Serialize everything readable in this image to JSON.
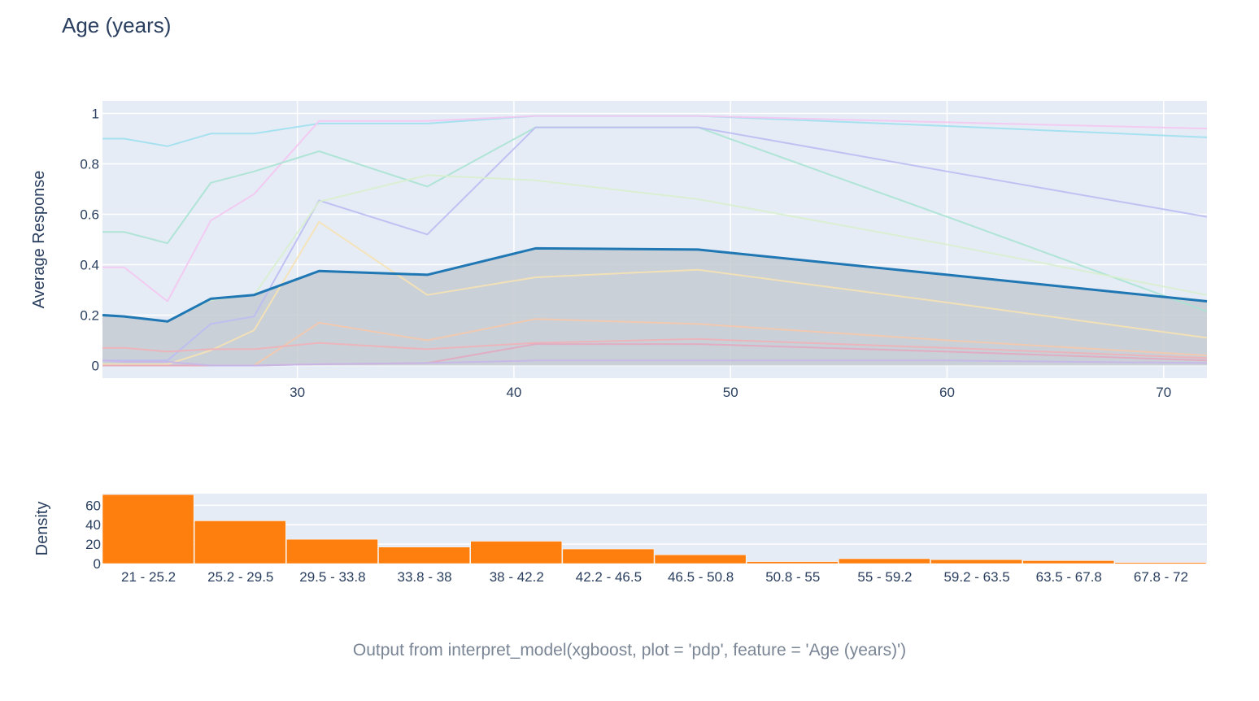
{
  "title": "Age (years)",
  "caption": "Output from interpret_model(xgboost, plot = 'pdp', feature = 'Age (years)')",
  "colors": {
    "plot_bg": "#e5ecf6",
    "grid": "#ffffff",
    "main_line": "#1f77b4",
    "main_fill": "#c5cbd1",
    "bar": "#ff7f0e",
    "axis_text": "#2a3f5f"
  },
  "chart_data": [
    {
      "type": "line",
      "title": "Age (years)",
      "xlabel": "",
      "ylabel": "Average Response",
      "xlim": [
        21,
        72
      ],
      "ylim": [
        -0.05,
        1.05
      ],
      "x_ticks": [
        30,
        40,
        50,
        60,
        70
      ],
      "y_ticks": [
        0,
        0.2,
        0.4,
        0.6,
        0.8,
        1
      ],
      "y_tick_labels": [
        "0",
        "0.2",
        "0.4",
        "0.6",
        "0.8",
        "1"
      ],
      "grid": true,
      "x": [
        21,
        22,
        24,
        26,
        28,
        31,
        36,
        41,
        48.5,
        60,
        72
      ],
      "main_series": {
        "values": [
          0.2,
          0.195,
          0.175,
          0.265,
          0.28,
          0.375,
          0.36,
          0.465,
          0.46,
          0.36,
          0.255
        ],
        "fill_to_zero": true
      },
      "ice_lines": [
        {
          "color": "#9ee0f0",
          "values": [
            0.9,
            0.9,
            0.87,
            0.92,
            0.92,
            0.96,
            0.96,
            0.99,
            0.99,
            0.95,
            0.905
          ]
        },
        {
          "color": "#f4c6f1",
          "values": [
            0.39,
            0.39,
            0.255,
            0.575,
            0.68,
            0.97,
            0.97,
            0.99,
            0.99,
            0.965,
            0.94
          ]
        },
        {
          "color": "#a8e3d3",
          "values": [
            0.53,
            0.53,
            0.485,
            0.725,
            0.77,
            0.85,
            0.71,
            0.945,
            0.945,
            0.59,
            0.215
          ]
        },
        {
          "color": "#bbbdf2",
          "values": [
            0.02,
            0.02,
            0.02,
            0.165,
            0.195,
            0.655,
            0.52,
            0.945,
            0.945,
            0.77,
            0.59
          ]
        },
        {
          "color": "#d8efce",
          "values": [
            0.2,
            0.195,
            0.175,
            0.26,
            0.28,
            0.65,
            0.755,
            0.735,
            0.66,
            0.48,
            0.28
          ]
        },
        {
          "color": "#f6e2b4",
          "values": [
            0.005,
            0.005,
            0.005,
            0.06,
            0.14,
            0.57,
            0.28,
            0.35,
            0.38,
            0.25,
            0.11
          ]
        },
        {
          "color": "#f5c8ad",
          "values": [
            0.0,
            0.0,
            0.0,
            0.0,
            0.0,
            0.17,
            0.1,
            0.185,
            0.165,
            0.1,
            0.04
          ]
        },
        {
          "color": "#f0b0b8",
          "values": [
            0.07,
            0.07,
            0.055,
            0.065,
            0.065,
            0.09,
            0.065,
            0.09,
            0.105,
            0.07,
            0.03
          ]
        },
        {
          "color": "#e3a8c0",
          "values": [
            0.0,
            0.0,
            0.0,
            0.0,
            0.0,
            0.005,
            0.01,
            0.085,
            0.085,
            0.055,
            0.02
          ]
        },
        {
          "color": "#c7b6ea",
          "values": [
            0.02,
            0.015,
            0.015,
            0.0,
            0.0,
            0.005,
            0.01,
            0.02,
            0.02,
            0.02,
            0.01
          ]
        }
      ]
    },
    {
      "type": "bar",
      "ylabel": "Density",
      "ylim": [
        0,
        72
      ],
      "y_ticks": [
        0,
        20,
        40,
        60
      ],
      "y_tick_labels": [
        "0",
        "20",
        "40",
        "60"
      ],
      "categories": [
        "21 - 25.2",
        "25.2 - 29.5",
        "29.5 - 33.8",
        "33.8 - 38",
        "38 - 42.2",
        "42.2 - 46.5",
        "46.5 - 50.8",
        "50.8 - 55",
        "55 - 59.2",
        "59.2 - 63.5",
        "63.5 - 67.8",
        "67.8 - 72"
      ],
      "values": [
        71,
        44,
        25,
        17,
        23,
        15,
        9,
        2,
        5,
        4,
        3,
        1
      ]
    }
  ]
}
